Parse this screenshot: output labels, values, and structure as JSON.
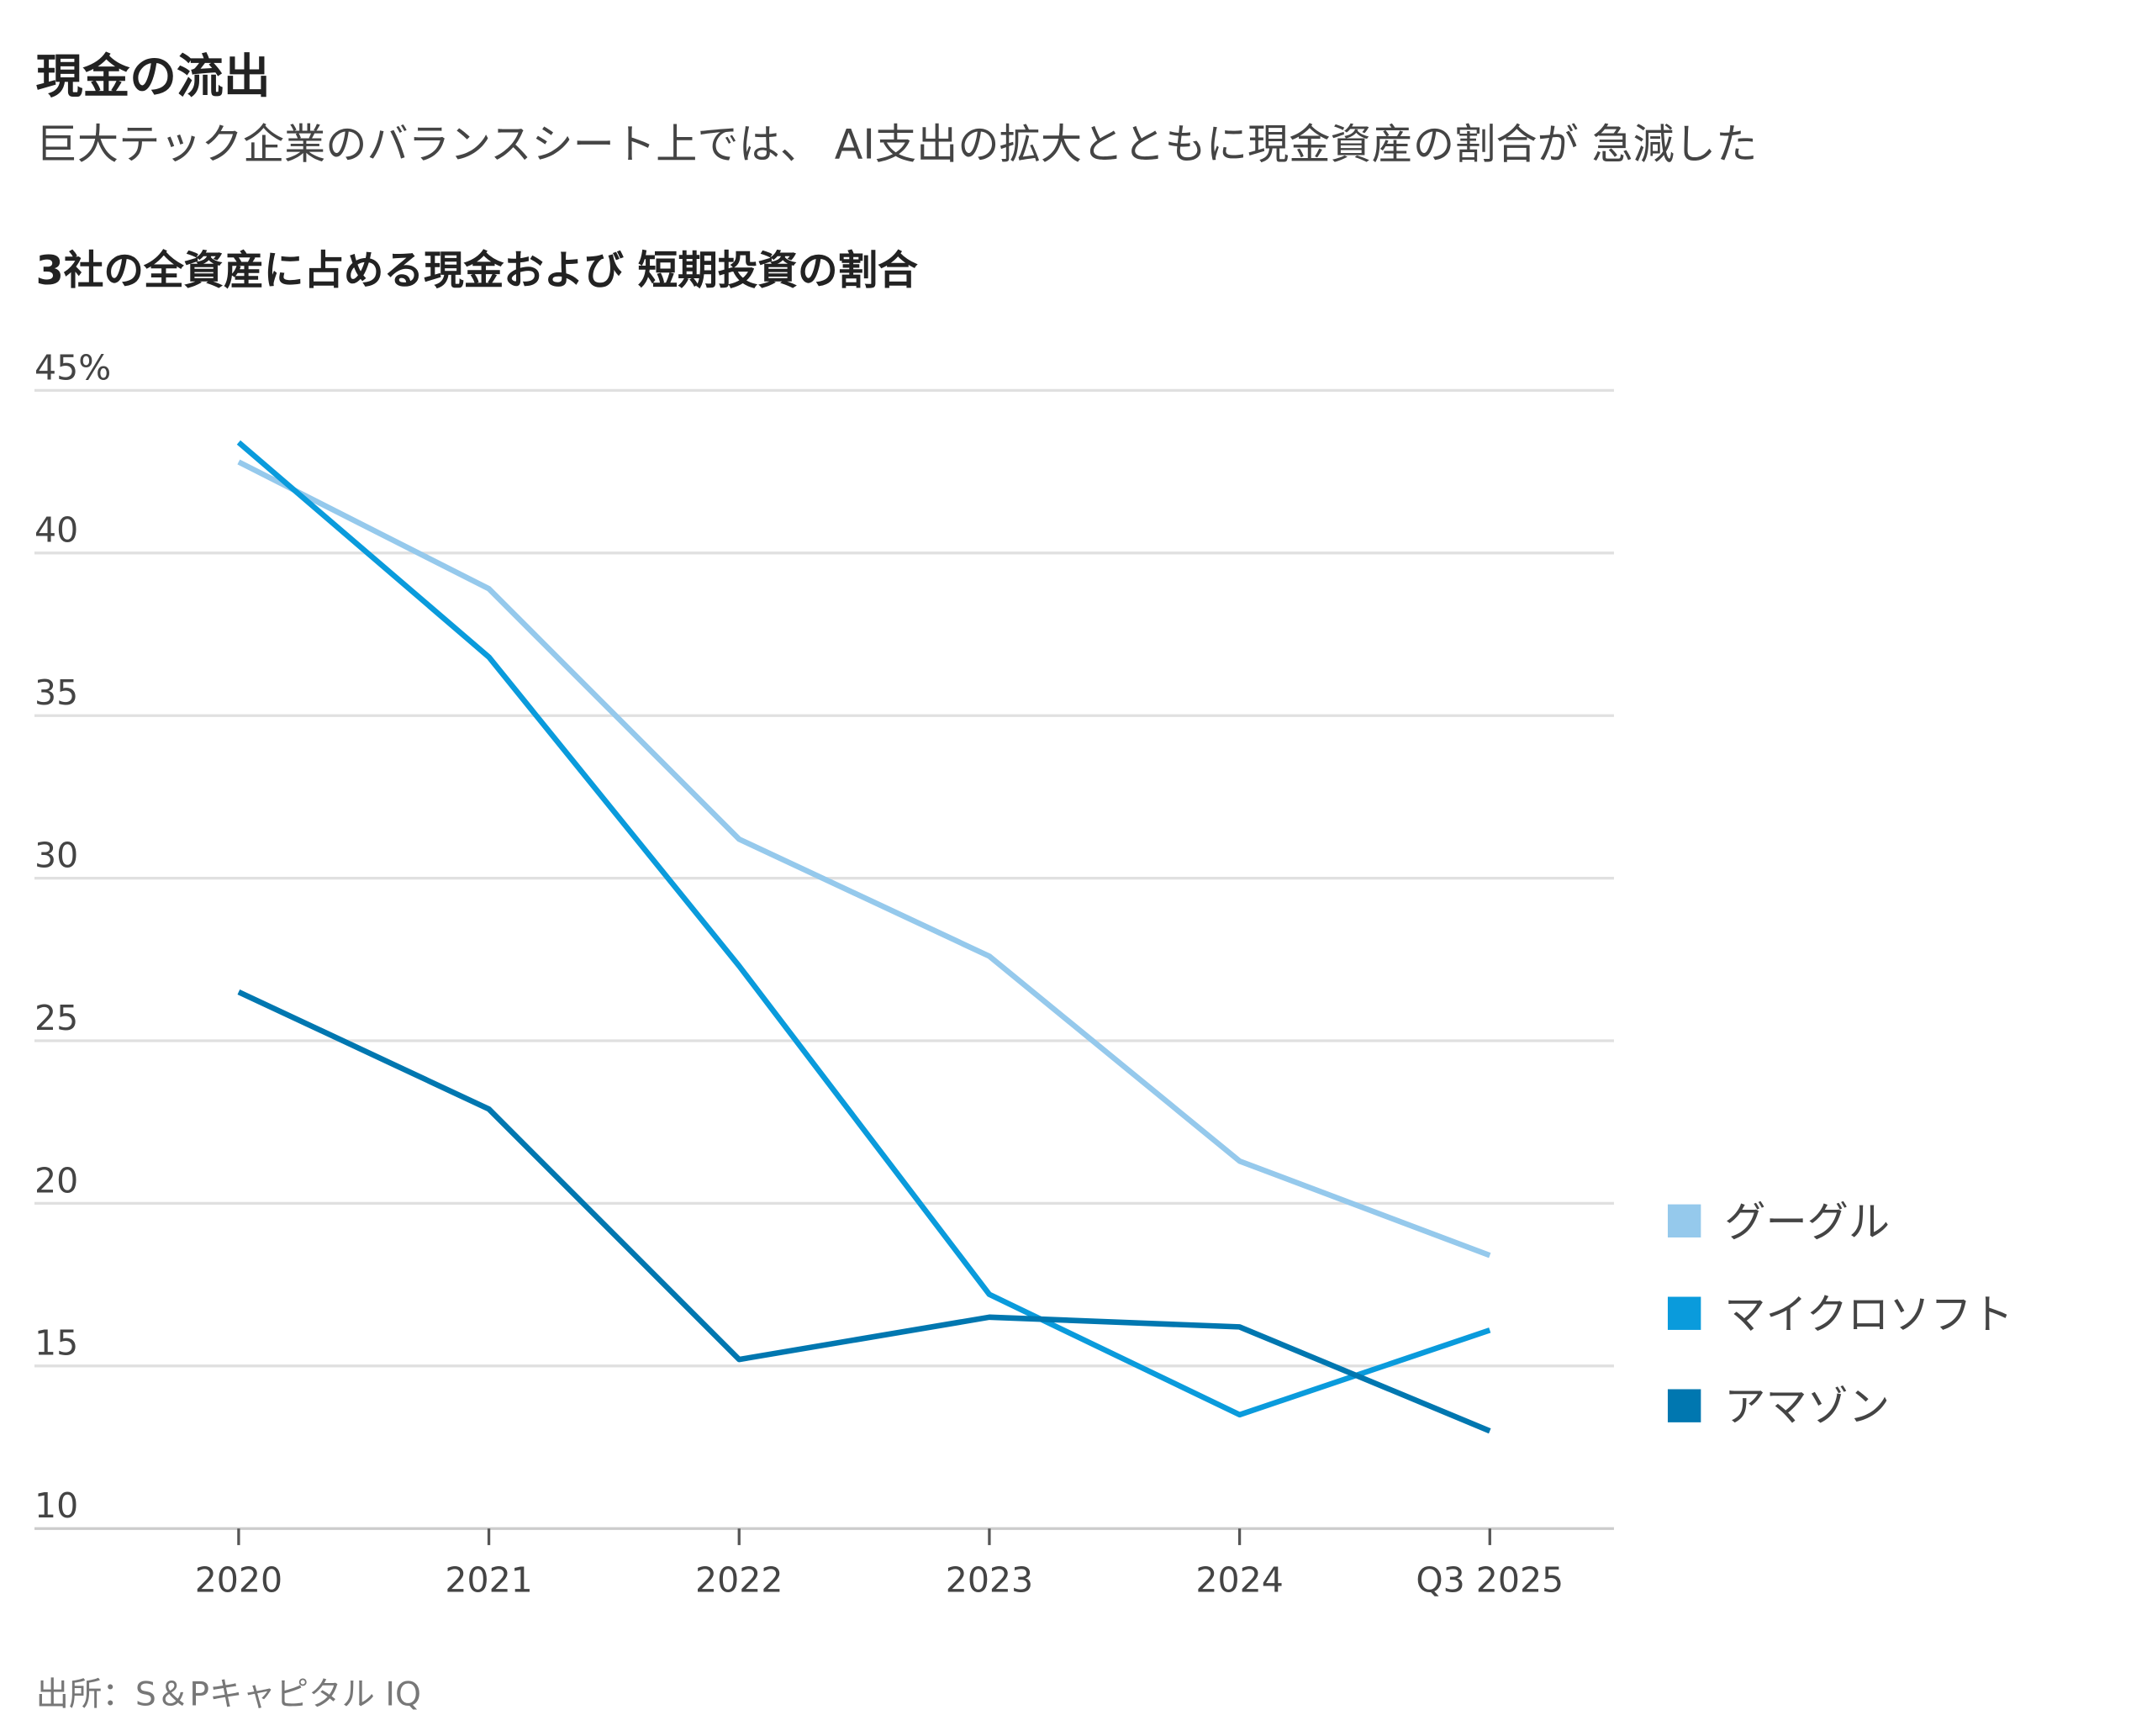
{
  "header": {
    "title": "現金の流出",
    "subtitle": "巨大テック企業のバランスシート上では、 AI支出の拡大とともに現金資産の割合が 急減した"
  },
  "source": "出所：S＆Pキャピタル IQ",
  "chart_data": {
    "type": "line",
    "title": "3社の全資産に占める現金および 短期投資の割合",
    "xlabel": "",
    "ylabel": "",
    "x": [
      "2020",
      "2021",
      "2022",
      "2023",
      "2024",
      "Q3 2025"
    ],
    "yticks": [
      "45%",
      "40",
      "35",
      "30",
      "25",
      "20",
      "15",
      "10"
    ],
    "ytick_values": [
      45,
      40,
      35,
      30,
      25,
      20,
      15,
      10
    ],
    "ylim": [
      10,
      45
    ],
    "grid": true,
    "legend_position": "right",
    "series": [
      {
        "name": "グーグル",
        "color": "#95c9ec",
        "values": [
          42.8,
          38.9,
          31.2,
          27.6,
          21.3,
          18.4
        ]
      },
      {
        "name": "マイクロソフト",
        "color": "#0a9bdc",
        "values": [
          43.4,
          36.8,
          27.3,
          17.2,
          13.5,
          16.1
        ]
      },
      {
        "name": "アマゾン",
        "color": "#0077b0",
        "values": [
          26.5,
          22.9,
          15.2,
          16.5,
          16.2,
          13.0
        ]
      }
    ]
  }
}
